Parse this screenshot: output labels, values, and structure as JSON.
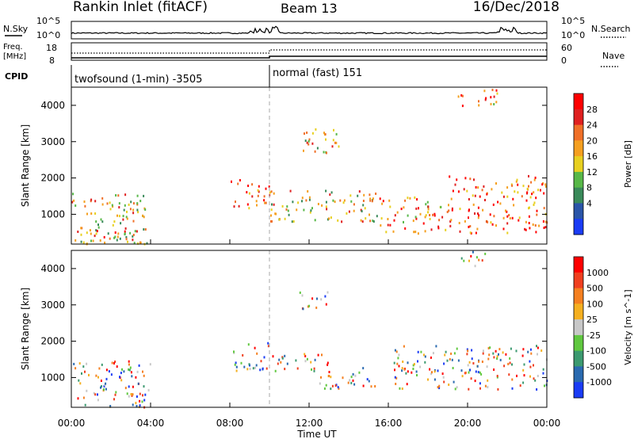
{
  "header": {
    "station": "Rankin Inlet (fitACF)",
    "beam": "Beam 13",
    "date": "16/Dec/2018"
  },
  "noise_panel": {
    "left_label": "N.Sky",
    "right_label": "N.Search",
    "left_ticks": [
      "10^5",
      "10^0"
    ],
    "right_ticks": [
      "10^5",
      "10^0"
    ]
  },
  "freq_panel": {
    "left_label_1": "Freq.",
    "left_label_2": "[MHz]",
    "right_label": "Nave",
    "left_ticks": [
      "18",
      "8"
    ],
    "right_ticks": [
      "60",
      "0"
    ]
  },
  "cpid": {
    "label": "CPID",
    "modes": [
      {
        "name": "twofsound (1-min) -3505",
        "start_hour": 0,
        "end_hour": 10
      },
      {
        "name": "normal (fast) 151",
        "start_hour": 10,
        "end_hour": 24
      }
    ]
  },
  "chart_data": [
    {
      "type": "heatmap",
      "title": "",
      "xlabel": "Time UT",
      "ylabel": "Slant Range [km]",
      "x_ticks": [
        "00:00",
        "04:00",
        "08:00",
        "12:00",
        "16:00",
        "20:00",
        "00:00"
      ],
      "x_range_hours": [
        0,
        24
      ],
      "y_ticks": [
        1000,
        2000,
        3000,
        4000
      ],
      "y_range_km": [
        180,
        4500
      ],
      "colorbar": {
        "label": "Power [dB]",
        "ticks": [
          "4",
          "8",
          "12",
          "16",
          "20",
          "24",
          "28"
        ],
        "colors": [
          "#1a3cf5",
          "#2a55a8",
          "#3a8a5a",
          "#58b848",
          "#e8d020",
          "#f5a020",
          "#f07028",
          "#e02020",
          "#ff0000"
        ]
      },
      "echo_regions": [
        {
          "t0": 0.0,
          "t1": 3.8,
          "r0": 180,
          "r1": 1600,
          "value": "8-12"
        },
        {
          "t0": 0.8,
          "t1": 3.8,
          "r0": 180,
          "r1": 600,
          "value": "24-28"
        },
        {
          "t0": 8.0,
          "t1": 10.0,
          "r0": 1200,
          "r1": 2000,
          "value": "12-24"
        },
        {
          "t0": 10.0,
          "t1": 15.5,
          "r0": 800,
          "r1": 1700,
          "value": "20-28"
        },
        {
          "t0": 15.5,
          "t1": 19.0,
          "r0": 500,
          "r1": 1500,
          "value": "24-28"
        },
        {
          "t0": 19.0,
          "t1": 24.0,
          "r0": 500,
          "r1": 2100,
          "value": "12-24"
        },
        {
          "t0": 11.5,
          "t1": 13.5,
          "r0": 2600,
          "r1": 3400,
          "value": "8-16"
        },
        {
          "t0": 19.5,
          "t1": 21.5,
          "r0": 4000,
          "r1": 4500,
          "value": "12-16"
        }
      ]
    },
    {
      "type": "heatmap",
      "title": "",
      "xlabel": "Time UT",
      "ylabel": "Slant Range [km]",
      "x_ticks": [
        "00:00",
        "04:00",
        "08:00",
        "12:00",
        "16:00",
        "20:00",
        "00:00"
      ],
      "x_range_hours": [
        0,
        24
      ],
      "y_ticks": [
        1000,
        2000,
        3000,
        4000
      ],
      "y_range_km": [
        180,
        4500
      ],
      "colorbar": {
        "label": "Velocity [m s^-1]",
        "ticks": [
          "1000",
          "500",
          "100",
          "25",
          "-25",
          "-100",
          "-500",
          "-1000"
        ],
        "colors": [
          "#1a3cf5",
          "#2a6ab0",
          "#3c9a70",
          "#60c840",
          "#c8c8c8",
          "#f5b020",
          "#f58020",
          "#f04020",
          "#ff0000"
        ]
      },
      "echo_regions": [
        {
          "t0": 0.0,
          "t1": 4.0,
          "r0": 180,
          "r1": 1500,
          "value": "-25..100"
        },
        {
          "t0": 8.0,
          "t1": 10.0,
          "r0": 1200,
          "r1": 2000,
          "value": "100..500"
        },
        {
          "t0": 10.0,
          "t1": 13.0,
          "r0": 1200,
          "r1": 1700,
          "value": "-25..25"
        },
        {
          "t0": 12.5,
          "t1": 15.5,
          "r0": 700,
          "r1": 1300,
          "value": "-100..-500"
        },
        {
          "t0": 16.0,
          "t1": 24.0,
          "r0": 700,
          "r1": 1900,
          "value": "-500..-1000"
        },
        {
          "t0": 11.5,
          "t1": 13.0,
          "r0": 2900,
          "r1": 3400,
          "value": "-100..-500"
        },
        {
          "t0": 19.5,
          "t1": 21.0,
          "r0": 4100,
          "r1": 4500,
          "value": "-500"
        }
      ]
    }
  ]
}
